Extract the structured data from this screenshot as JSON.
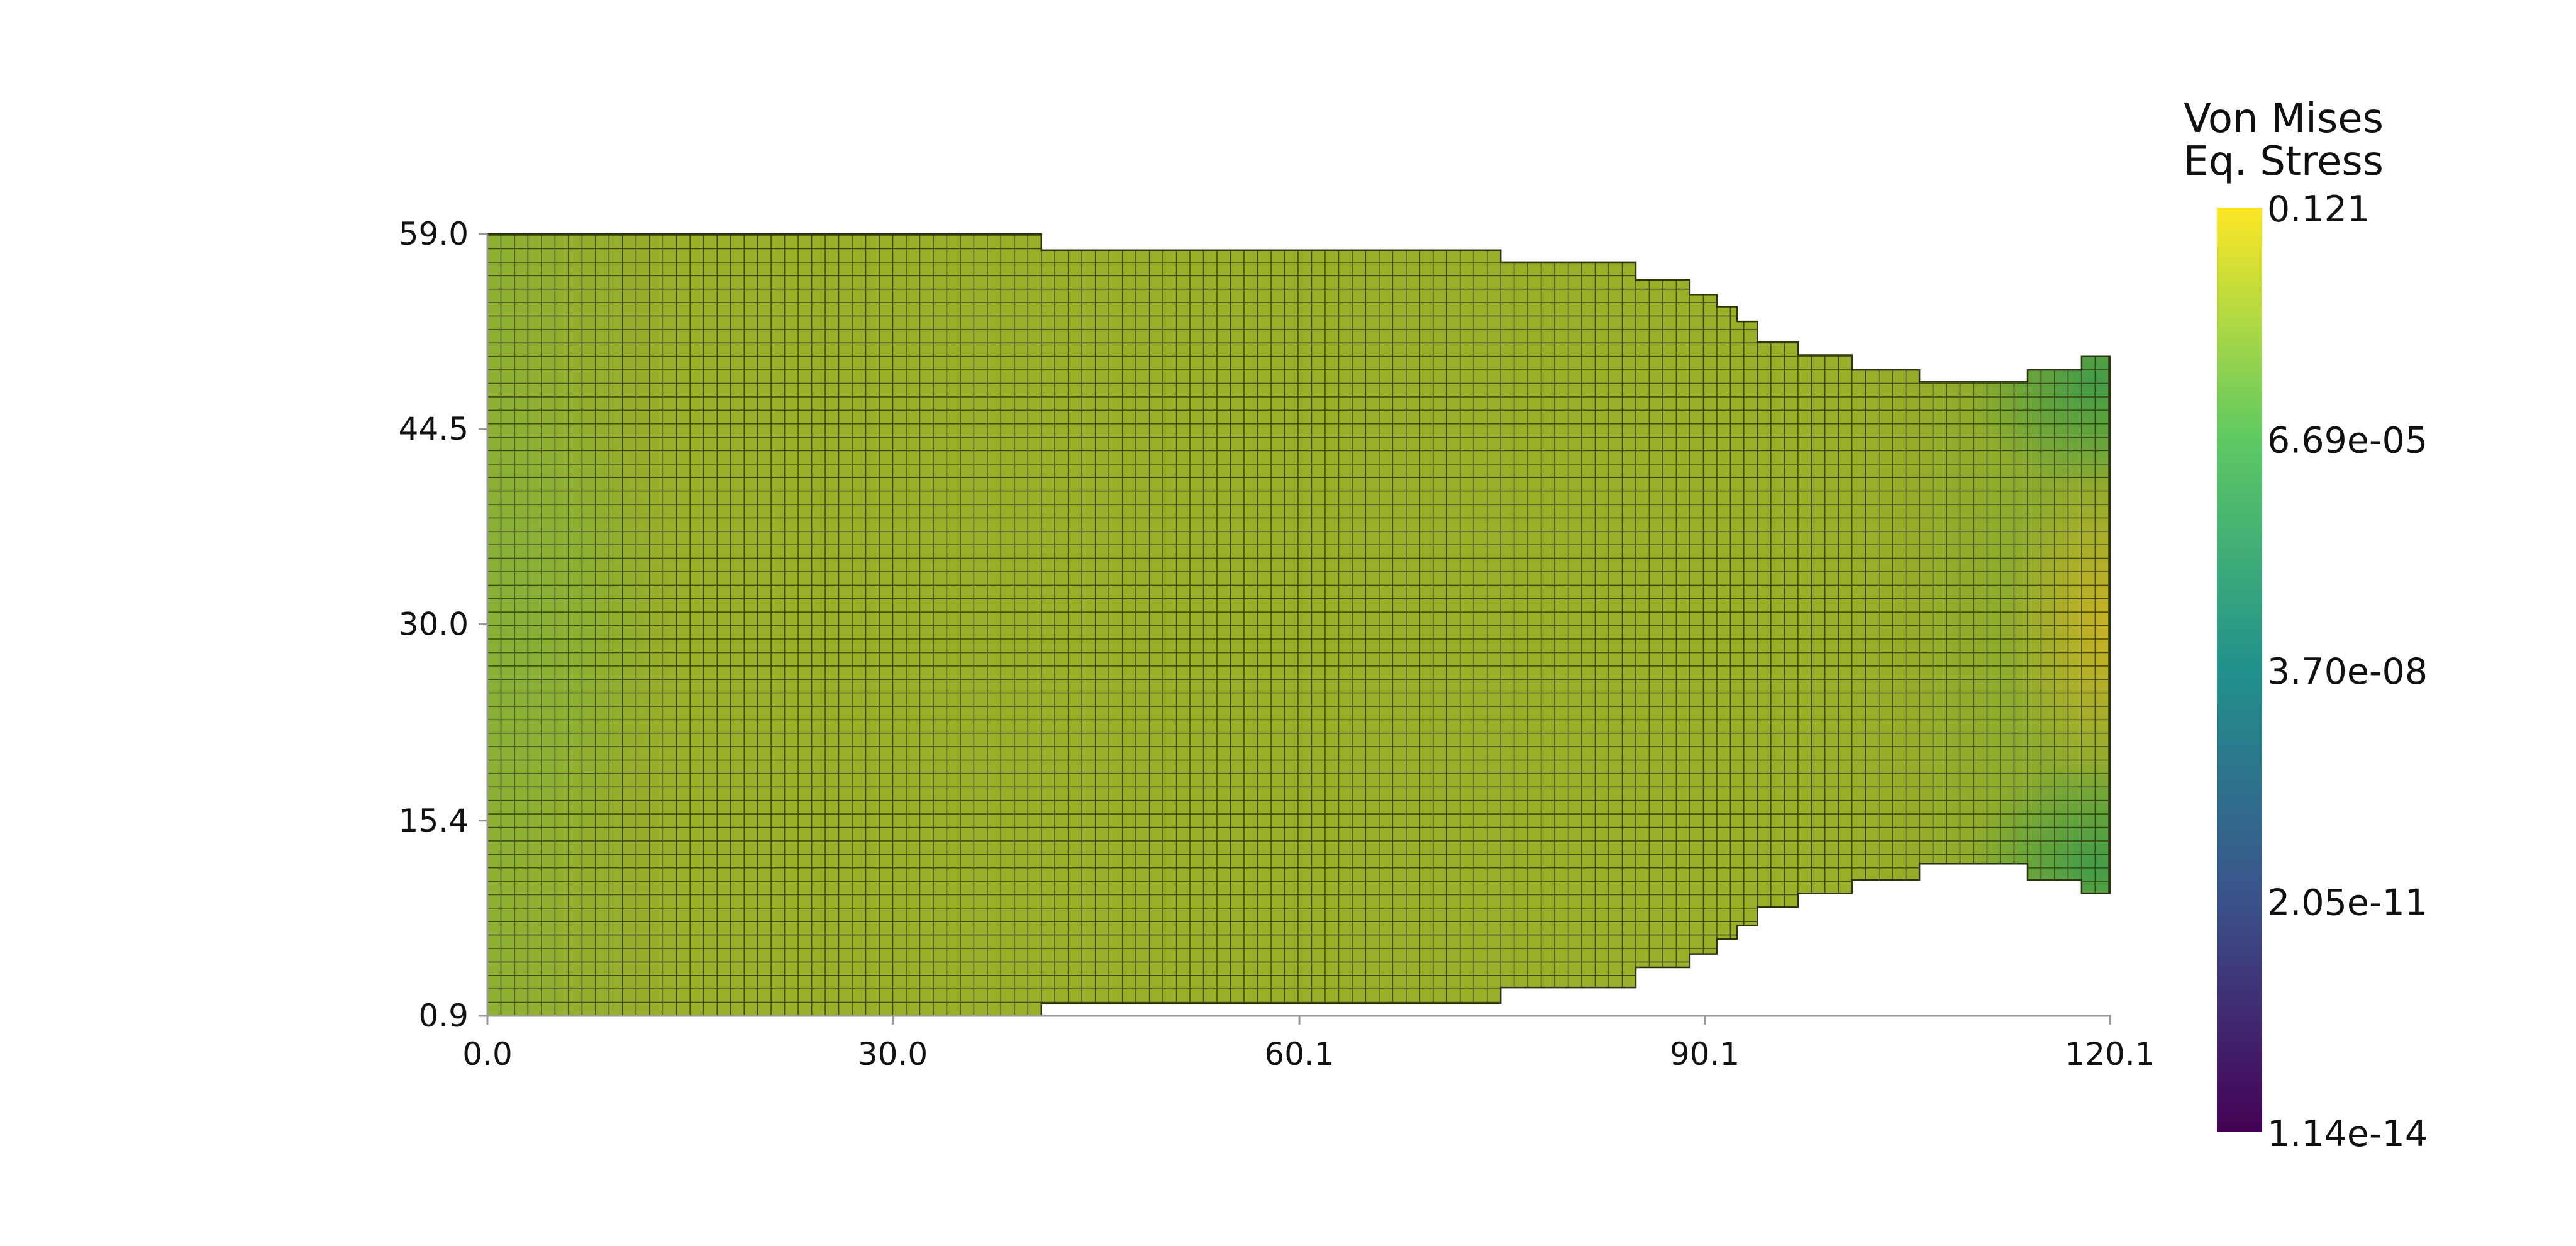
{
  "chart_data": {
    "type": "heatmap",
    "plot_kind": "finite-element mesh contour (quad mesh, top view)",
    "x_ticks": [
      "0.0",
      "30.0",
      "60.1",
      "90.1",
      "120.1"
    ],
    "y_ticks": [
      "0.9",
      "15.4",
      "30.0",
      "44.5",
      "59.0"
    ],
    "xlim": [
      0.0,
      120.1
    ],
    "ylim": [
      0.9,
      59.0
    ],
    "grid": false,
    "mesh_lines": true,
    "mesh_spacing": 1.0,
    "legend_position": "right",
    "colorbar": {
      "title_lines": [
        "Von Mises",
        "Eq. Stress"
      ],
      "labels": [
        "0.121",
        "6.69e-05",
        "3.70e-08",
        "2.05e-11",
        "1.14e-14"
      ],
      "scale": "log",
      "colormap": "viridis",
      "stops": [
        "#fde725",
        "#5ec962",
        "#21918c",
        "#3b528b",
        "#440154"
      ]
    },
    "body_outline": {
      "top_edge": [
        [
          0.0,
          59.0
        ],
        [
          41.0,
          59.0
        ],
        [
          41.0,
          57.8
        ],
        [
          75.0,
          57.8
        ],
        [
          75.0,
          56.9
        ],
        [
          85.0,
          56.9
        ],
        [
          85.0,
          55.6
        ],
        [
          89.0,
          55.6
        ],
        [
          89.0,
          54.5
        ],
        [
          91.0,
          54.5
        ],
        [
          91.0,
          53.6
        ],
        [
          92.5,
          53.6
        ],
        [
          92.5,
          52.5
        ],
        [
          94.0,
          52.5
        ],
        [
          94.0,
          51.0
        ],
        [
          97.0,
          51.0
        ],
        [
          97.0,
          50.0
        ],
        [
          101.0,
          50.0
        ],
        [
          101.0,
          48.9
        ],
        [
          106.0,
          48.9
        ],
        [
          106.0,
          48.0
        ],
        [
          114.0,
          48.0
        ],
        [
          114.0,
          48.9
        ],
        [
          118.0,
          48.9
        ],
        [
          118.0,
          49.9
        ],
        [
          120.1,
          49.9
        ]
      ],
      "bottom_edge": [
        [
          120.1,
          10.0
        ],
        [
          118.0,
          10.0
        ],
        [
          118.0,
          11.0
        ],
        [
          114.0,
          11.0
        ],
        [
          114.0,
          12.2
        ],
        [
          106.0,
          12.2
        ],
        [
          106.0,
          11.0
        ],
        [
          101.0,
          11.0
        ],
        [
          101.0,
          10.0
        ],
        [
          97.0,
          10.0
        ],
        [
          97.0,
          9.0
        ],
        [
          94.0,
          9.0
        ],
        [
          94.0,
          7.6
        ],
        [
          92.5,
          7.6
        ],
        [
          92.5,
          6.6
        ],
        [
          91.0,
          6.6
        ],
        [
          91.0,
          5.5
        ],
        [
          89.0,
          5.5
        ],
        [
          89.0,
          4.5
        ],
        [
          85.0,
          4.5
        ],
        [
          85.0,
          3.0
        ],
        [
          75.0,
          3.0
        ],
        [
          75.0,
          1.8
        ],
        [
          41.0,
          1.8
        ],
        [
          41.0,
          0.9
        ],
        [
          0.0,
          0.9
        ]
      ]
    },
    "field_colors": {
      "bulk": "#9aae28",
      "left_region": "#8fb033",
      "right_low_stress_corners": "#4fa246",
      "right_high_stress_center": "#c5b124",
      "mesh_line": "#2f3a12"
    }
  }
}
